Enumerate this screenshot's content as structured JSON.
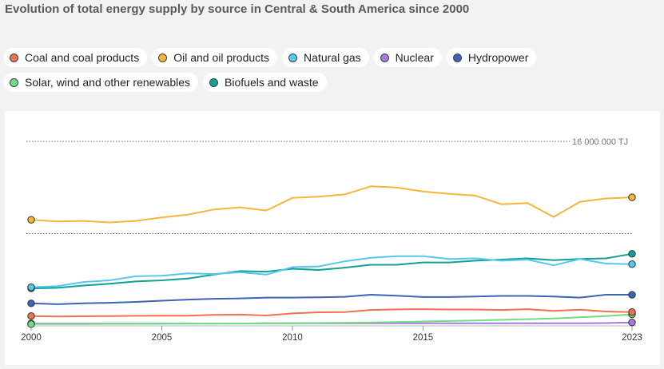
{
  "title": "Evolution of total energy supply by source in Central & South America since 2000",
  "legend": [
    {
      "label": "Coal and coal products",
      "color": "#f07050"
    },
    {
      "label": "Oil and oil products",
      "color": "#f6b53b"
    },
    {
      "label": "Natural gas",
      "color": "#55c8ee"
    },
    {
      "label": "Nuclear",
      "color": "#a678e0"
    },
    {
      "label": "Hydropower",
      "color": "#3c64b8"
    },
    {
      "label": "Solar, wind and other renewables",
      "color": "#6ede82"
    },
    {
      "label": "Biofuels and waste",
      "color": "#13a094"
    }
  ],
  "chart_data": {
    "type": "line",
    "title": "Evolution of total energy supply by source in Central & South America since 2000",
    "xlabel": "",
    "ylabel": "TJ",
    "x": [
      2000,
      2001,
      2002,
      2003,
      2004,
      2005,
      2006,
      2007,
      2008,
      2009,
      2010,
      2011,
      2012,
      2013,
      2014,
      2015,
      2016,
      2017,
      2018,
      2019,
      2020,
      2021,
      2022,
      2023
    ],
    "xticks": [
      "2000",
      "2005",
      "2010",
      "2015",
      "2023"
    ],
    "ylim": [
      0,
      16000000
    ],
    "reference_lines": [
      16000000,
      8000000
    ],
    "reference_label": "16 000 000 TJ",
    "series": [
      {
        "name": "Oil and oil products",
        "color": "#f6b53b",
        "values": [
          9200000,
          9050000,
          9100000,
          8970000,
          9100000,
          9400000,
          9650000,
          10100000,
          10280000,
          10000000,
          11100000,
          11200000,
          11400000,
          12100000,
          12000000,
          11650000,
          11450000,
          11300000,
          10550000,
          10650000,
          9450000,
          10750000,
          11050000,
          11150000
        ]
      },
      {
        "name": "Natural gas",
        "color": "#55c8ee",
        "values": [
          3350000,
          3450000,
          3800000,
          3950000,
          4300000,
          4350000,
          4550000,
          4500000,
          4650000,
          4450000,
          5100000,
          5150000,
          5600000,
          5900000,
          6050000,
          6050000,
          5800000,
          5850000,
          5650000,
          5750000,
          5250000,
          5800000,
          5400000,
          5350000
        ]
      },
      {
        "name": "Biofuels and waste",
        "color": "#13a094",
        "values": [
          3250000,
          3300000,
          3500000,
          3650000,
          3850000,
          3950000,
          4100000,
          4450000,
          4750000,
          4700000,
          4950000,
          4850000,
          5050000,
          5300000,
          5300000,
          5500000,
          5500000,
          5650000,
          5750000,
          5850000,
          5700000,
          5800000,
          5850000,
          6250000
        ]
      },
      {
        "name": "Hydropower",
        "color": "#3c64b8",
        "values": [
          1950000,
          1880000,
          1950000,
          2000000,
          2080000,
          2180000,
          2280000,
          2350000,
          2380000,
          2450000,
          2450000,
          2480000,
          2520000,
          2700000,
          2620000,
          2500000,
          2500000,
          2550000,
          2600000,
          2600000,
          2550000,
          2450000,
          2700000,
          2700000
        ]
      },
      {
        "name": "Coal and coal products",
        "color": "#f07050",
        "values": [
          850000,
          820000,
          830000,
          850000,
          870000,
          880000,
          890000,
          950000,
          980000,
          900000,
          1080000,
          1180000,
          1200000,
          1380000,
          1430000,
          1450000,
          1420000,
          1420000,
          1380000,
          1450000,
          1300000,
          1400000,
          1250000,
          1200000
        ]
      },
      {
        "name": "Solar, wind and other renewables",
        "color": "#6ede82",
        "values": [
          150000,
          150000,
          160000,
          170000,
          170000,
          180000,
          190000,
          200000,
          210000,
          220000,
          230000,
          250000,
          270000,
          300000,
          330000,
          380000,
          420000,
          470000,
          520000,
          580000,
          640000,
          740000,
          850000,
          1000000
        ]
      },
      {
        "name": "Nuclear",
        "color": "#a678e0",
        "values": [
          200000,
          200000,
          200000,
          200000,
          200000,
          200000,
          200000,
          200000,
          200000,
          220000,
          220000,
          220000,
          220000,
          220000,
          220000,
          220000,
          230000,
          230000,
          230000,
          230000,
          230000,
          230000,
          240000,
          300000
        ]
      }
    ]
  }
}
